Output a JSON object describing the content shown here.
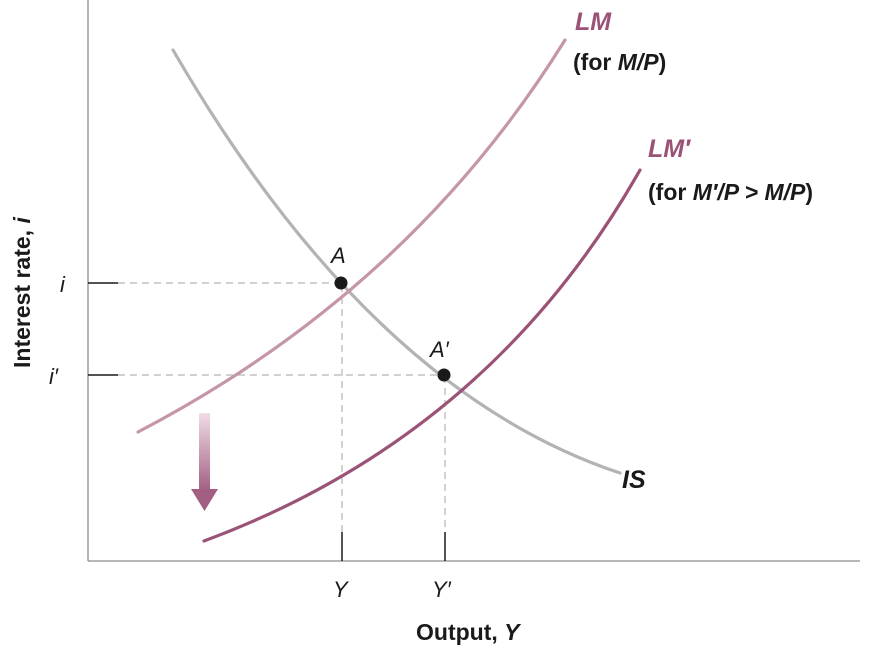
{
  "axes": {
    "y_label": "Interest rate, ",
    "y_label_var": "i",
    "x_label": "Output, ",
    "x_label_var": "Y"
  },
  "ticks": {
    "i": "i",
    "i_prime": "i′",
    "Y": "Y",
    "Y_prime": "Y′"
  },
  "curves": {
    "lm": {
      "name": "LM",
      "note_open": "(for ",
      "note_var": "M/P",
      "note_close": ")",
      "color": "#c596aa"
    },
    "lm_prime": {
      "name": "LM′",
      "note_open": "(for ",
      "note_var": "M′/P > M/P",
      "note_close": ")",
      "color": "#9b5277"
    },
    "is": {
      "name": "IS",
      "color": "#b3b3b3"
    }
  },
  "points": {
    "a": "A",
    "a_prime": "A′"
  },
  "colors": {
    "axis": "#8c8c8c",
    "guide": "#b5b5b5",
    "point": "#1a1a1a",
    "arrow_top": "#f1dde6",
    "arrow_bottom": "#a35f82"
  }
}
